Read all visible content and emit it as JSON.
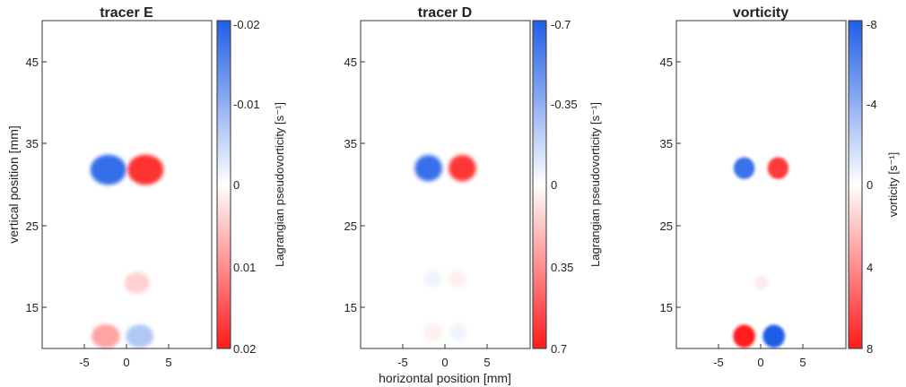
{
  "figure": {
    "x_axis_label": "horizontal position [mm]",
    "y_axis_label": "vertical position [mm]"
  },
  "chart_data": [
    {
      "type": "heatmap",
      "title": "tracer E",
      "xlabel": "",
      "ylabel": "vertical position [mm]",
      "xlim": [
        -10,
        10
      ],
      "ylim": [
        10,
        50
      ],
      "xticks": [
        "-5",
        "0",
        "5"
      ],
      "yticks": [
        "15",
        "25",
        "35",
        "45"
      ],
      "colorbar": {
        "label": "Lagrangian pseudovorticity [s⁻¹]",
        "range": [
          -0.02,
          0.02
        ],
        "ticks": [
          "-0.02",
          "-0.01",
          "0",
          "0.01",
          "0.02"
        ],
        "top_color": "#1f5ee6",
        "mid_color": "#ffffff",
        "bottom_color": "#ff1a1a"
      },
      "features": [
        {
          "x": -2.2,
          "y": 31.8,
          "value": -0.018
        },
        {
          "x": 2.2,
          "y": 31.8,
          "value": 0.018
        },
        {
          "x": -2.5,
          "y": 11.5,
          "value": 0.008
        },
        {
          "x": 1.5,
          "y": 11.5,
          "value": -0.007
        },
        {
          "x": 1.2,
          "y": 18,
          "value": 0.004
        }
      ]
    },
    {
      "type": "heatmap",
      "title": "tracer D",
      "xlabel": "horizontal position [mm]",
      "ylabel": "",
      "xlim": [
        -10,
        10
      ],
      "ylim": [
        10,
        50
      ],
      "xticks": [
        "-5",
        "0",
        "5"
      ],
      "yticks": [
        "15",
        "25",
        "35",
        "45"
      ],
      "colorbar": {
        "label": "Lagrangian pseudovorticity [s⁻¹]",
        "range": [
          -0.7,
          0.7
        ],
        "ticks": [
          "-0.7",
          "-0.35",
          "0",
          "0.35",
          "0.7"
        ],
        "top_color": "#1f5ee6",
        "mid_color": "#ffffff",
        "bottom_color": "#ff1a1a"
      },
      "features": [
        {
          "x": -2,
          "y": 32,
          "value": -0.62
        },
        {
          "x": 2,
          "y": 32,
          "value": 0.62
        },
        {
          "x": -1.5,
          "y": 18.5,
          "value": -0.05
        },
        {
          "x": 1.5,
          "y": 18.5,
          "value": 0.05
        },
        {
          "x": -1.5,
          "y": 12,
          "value": 0.05
        },
        {
          "x": 1.5,
          "y": 12,
          "value": -0.05
        }
      ]
    },
    {
      "type": "heatmap",
      "title": "vorticity",
      "xlabel": "",
      "ylabel": "",
      "xlim": [
        -10,
        10
      ],
      "ylim": [
        10,
        50
      ],
      "xticks": [
        "-5",
        "0",
        "5"
      ],
      "yticks": [
        "15",
        "25",
        "35",
        "45"
      ],
      "colorbar": {
        "label": "vorticity [s⁻¹]",
        "range": [
          -8,
          8
        ],
        "ticks": [
          "-8",
          "-4",
          "0",
          "4",
          "8"
        ],
        "top_color": "#1f5ee6",
        "mid_color": "#ffffff",
        "bottom_color": "#ff1a1a"
      },
      "features": [
        {
          "x": -2,
          "y": 32,
          "value": -7
        },
        {
          "x": 2,
          "y": 32,
          "value": 7
        },
        {
          "x": -2,
          "y": 11.5,
          "value": 8
        },
        {
          "x": 1.5,
          "y": 11.5,
          "value": -8
        },
        {
          "x": 0,
          "y": 18,
          "value": 0.7
        }
      ]
    }
  ]
}
